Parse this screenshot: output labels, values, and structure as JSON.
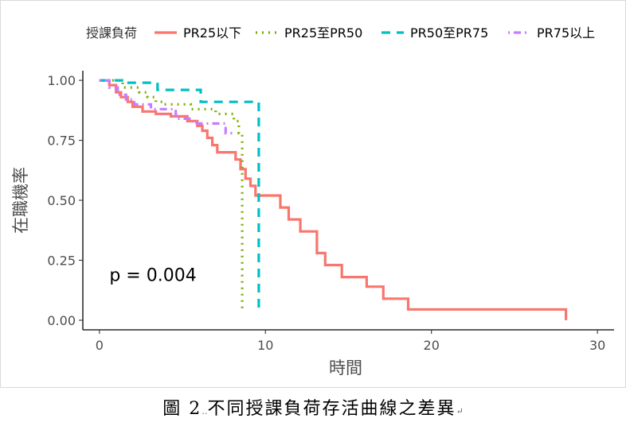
{
  "caption": {
    "figure_no": "圖 2",
    "dots": "‥",
    "text": "不同授課負荷存活曲線之差異",
    "end_mark": "↵"
  },
  "chart_data": {
    "type": "line",
    "subtype": "kaplan-meier step curve",
    "xlabel": "時間",
    "ylabel": "在職機率",
    "xlim": [
      -1,
      31
    ],
    "ylim": [
      -0.04,
      1.04
    ],
    "x_ticks": [
      "0",
      "10",
      "20",
      "30"
    ],
    "y_ticks": [
      "0.00",
      "0.25",
      "0.50",
      "0.75",
      "1.00"
    ],
    "grid": false,
    "legend": {
      "title": "授課負荷",
      "position": "top",
      "entries": [
        "PR25以下",
        "PR25至PR50",
        "PR50至PR75",
        "PR75以上"
      ]
    },
    "annotation": {
      "text": "p = 0.004",
      "x": 0.6,
      "y": 0.19
    },
    "series": [
      {
        "name": "PR25以下",
        "color": "#F8766D",
        "dash": "solid",
        "points": [
          [
            0,
            1.0
          ],
          [
            0.6,
            1.0
          ],
          [
            0.6,
            0.98
          ],
          [
            1,
            0.98
          ],
          [
            1,
            0.95
          ],
          [
            1.3,
            0.95
          ],
          [
            1.3,
            0.93
          ],
          [
            1.7,
            0.93
          ],
          [
            1.7,
            0.91
          ],
          [
            2,
            0.91
          ],
          [
            2,
            0.89
          ],
          [
            2.6,
            0.89
          ],
          [
            2.6,
            0.87
          ],
          [
            3.4,
            0.87
          ],
          [
            3.4,
            0.86
          ],
          [
            4.3,
            0.86
          ],
          [
            4.3,
            0.85
          ],
          [
            5.3,
            0.85
          ],
          [
            5.3,
            0.83
          ],
          [
            5.9,
            0.83
          ],
          [
            5.9,
            0.81
          ],
          [
            6.2,
            0.81
          ],
          [
            6.2,
            0.79
          ],
          [
            6.5,
            0.79
          ],
          [
            6.5,
            0.76
          ],
          [
            6.8,
            0.76
          ],
          [
            6.8,
            0.73
          ],
          [
            7.1,
            0.73
          ],
          [
            7.1,
            0.7
          ],
          [
            8.2,
            0.7
          ],
          [
            8.2,
            0.67
          ],
          [
            8.5,
            0.67
          ],
          [
            8.5,
            0.63
          ],
          [
            8.8,
            0.63
          ],
          [
            8.8,
            0.59
          ],
          [
            9.1,
            0.59
          ],
          [
            9.1,
            0.56
          ],
          [
            9.4,
            0.56
          ],
          [
            9.4,
            0.52
          ],
          [
            10.9,
            0.52
          ],
          [
            10.9,
            0.47
          ],
          [
            11.4,
            0.47
          ],
          [
            11.4,
            0.42
          ],
          [
            12.1,
            0.42
          ],
          [
            12.1,
            0.37
          ],
          [
            13.1,
            0.37
          ],
          [
            13.1,
            0.28
          ],
          [
            13.6,
            0.28
          ],
          [
            13.6,
            0.23
          ],
          [
            14.6,
            0.23
          ],
          [
            14.6,
            0.18
          ],
          [
            16.1,
            0.18
          ],
          [
            16.1,
            0.14
          ],
          [
            17.1,
            0.14
          ],
          [
            17.1,
            0.09
          ],
          [
            18.6,
            0.09
          ],
          [
            18.6,
            0.045
          ],
          [
            28.1,
            0.045
          ],
          [
            28.1,
            0.0
          ]
        ]
      },
      {
        "name": "PR25至PR50",
        "color": "#7CAE00",
        "dash": "dotted",
        "points": [
          [
            0,
            1.0
          ],
          [
            1.4,
            1.0
          ],
          [
            1.4,
            0.97
          ],
          [
            2.4,
            0.97
          ],
          [
            2.4,
            0.95
          ],
          [
            2.9,
            0.95
          ],
          [
            2.9,
            0.93
          ],
          [
            3.4,
            0.93
          ],
          [
            3.4,
            0.91
          ],
          [
            3.9,
            0.91
          ],
          [
            3.9,
            0.9
          ],
          [
            5.5,
            0.9
          ],
          [
            5.5,
            0.88
          ],
          [
            7.0,
            0.88
          ],
          [
            7.0,
            0.86
          ],
          [
            8.1,
            0.86
          ],
          [
            8.1,
            0.83
          ],
          [
            8.4,
            0.83
          ],
          [
            8.4,
            0.78
          ],
          [
            8.6,
            0.78
          ],
          [
            8.6,
            0.65
          ],
          [
            8.6,
            0.62
          ],
          [
            8.6,
            0.04
          ]
        ]
      },
      {
        "name": "PR50至PR75",
        "color": "#00BFC4",
        "dash": "dashed",
        "points": [
          [
            0,
            1.0
          ],
          [
            1.5,
            1.0
          ],
          [
            1.5,
            0.99
          ],
          [
            3.5,
            0.99
          ],
          [
            3.5,
            0.96
          ],
          [
            6.1,
            0.96
          ],
          [
            6.1,
            0.91
          ],
          [
            9.6,
            0.91
          ],
          [
            9.6,
            0.03
          ]
        ]
      },
      {
        "name": "PR75以上",
        "color": "#C77CFF",
        "dash": "dashdot",
        "points": [
          [
            0,
            1.0
          ],
          [
            0.6,
            1.0
          ],
          [
            0.6,
            0.97
          ],
          [
            1.1,
            0.97
          ],
          [
            1.1,
            0.94
          ],
          [
            1.6,
            0.94
          ],
          [
            1.6,
            0.92
          ],
          [
            2.1,
            0.92
          ],
          [
            2.1,
            0.9
          ],
          [
            3.1,
            0.9
          ],
          [
            3.1,
            0.88
          ],
          [
            4.6,
            0.88
          ],
          [
            4.6,
            0.84
          ],
          [
            5.6,
            0.84
          ],
          [
            5.6,
            0.82
          ],
          [
            7.6,
            0.82
          ],
          [
            7.6,
            0.78
          ],
          [
            8.0,
            0.78
          ]
        ]
      }
    ]
  }
}
